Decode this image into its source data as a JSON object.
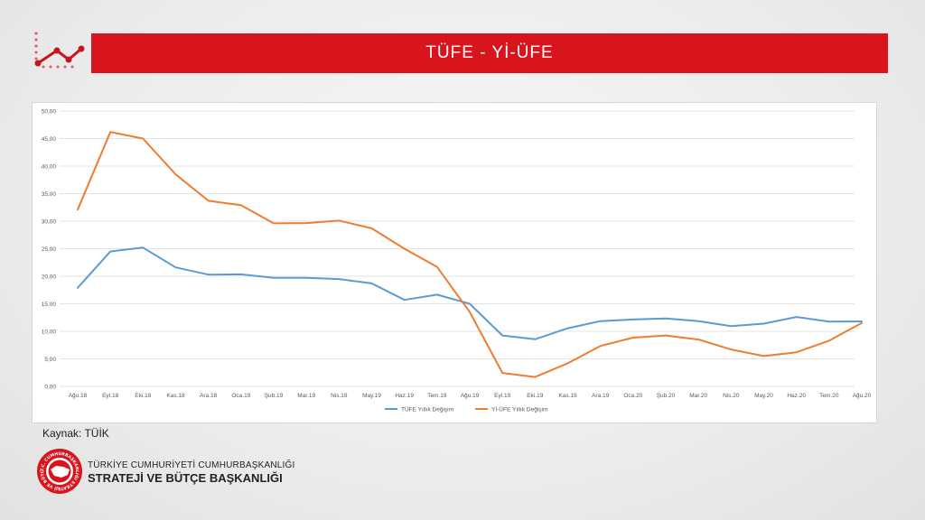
{
  "header": {
    "title": "TÜFE - Yİ-ÜFE",
    "logo_icon": "trend-line-icon",
    "accent_color": "#d8141d"
  },
  "source": {
    "label": "Kaynak: TÜİK"
  },
  "footer": {
    "org_line1": "TÜRKİYE CUMHURİYETİ CUMHURBAŞKANLIĞI",
    "org_line2": "STRATEJİ VE BÜTÇE BAŞKANLIĞI",
    "emblem_icon": "presidency-seal-icon",
    "emblem_text": "T.C. CUMHURBAŞKANLIĞI STRATEJİ VE BÜTÇE BAŞKANLIĞI"
  },
  "chart_data": {
    "type": "line",
    "title": "",
    "xlabel": "",
    "ylabel": "",
    "ylim": [
      0,
      50
    ],
    "y_ticks": [
      "0,00",
      "5,00",
      "10,00",
      "15,00",
      "20,00",
      "25,00",
      "30,00",
      "35,00",
      "40,00",
      "45,00",
      "50,00"
    ],
    "grid": true,
    "legend_position": "bottom",
    "categories": [
      "Ağu.18",
      "Eyl.18",
      "Eki.18",
      "Kas.18",
      "Ara.18",
      "Oca.19",
      "Şub.19",
      "Mar.19",
      "Nis.19",
      "May.19",
      "Haz.19",
      "Tem.19",
      "Ağu.19",
      "Eyl.19",
      "Eki.19",
      "Kas.19",
      "Ara.19",
      "Oca.20",
      "Şub.20",
      "Mar.20",
      "Nis.20",
      "May.20",
      "Haz.20",
      "Tem.20",
      "Ağu.20"
    ],
    "series": [
      {
        "name": "TÜFE Yıllık Değişim",
        "color": "#5b9bd5",
        "values": [
          17.9,
          24.5,
          25.2,
          21.6,
          20.3,
          20.35,
          19.7,
          19.7,
          19.5,
          18.7,
          15.7,
          16.65,
          15.0,
          9.25,
          8.55,
          10.55,
          11.85,
          12.15,
          12.35,
          11.85,
          10.95,
          11.4,
          12.6,
          11.75,
          11.8
        ]
      },
      {
        "name": "Yİ-ÜFE Yıllık Değişim",
        "color": "#ed7d31",
        "values": [
          32.1,
          46.2,
          45.0,
          38.5,
          33.7,
          32.9,
          29.6,
          29.65,
          30.1,
          28.7,
          25.0,
          21.7,
          13.5,
          2.45,
          1.7,
          4.2,
          7.35,
          8.85,
          9.25,
          8.5,
          6.7,
          5.5,
          6.2,
          8.3,
          11.5
        ]
      }
    ]
  }
}
